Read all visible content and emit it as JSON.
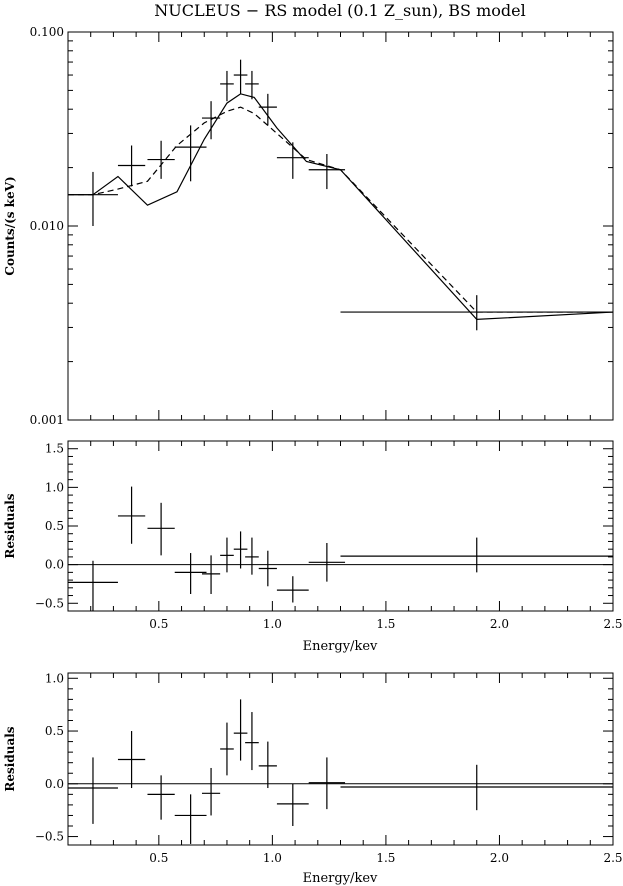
{
  "chart_data": [
    {
      "type": "line",
      "title": "NUCLEUS − RS model (0.1 Z_sun), BS model",
      "xlabel": "",
      "ylabel": "Counts/(s keV)",
      "xlim": [
        0.1,
        2.5
      ],
      "ylim": [
        0.001,
        0.1
      ],
      "yscale": "log",
      "ytick_labels": [
        "0.100",
        "0.010",
        "0.001"
      ],
      "ytick_values": [
        0.1,
        0.01,
        0.001
      ],
      "data_points": [
        {
          "x": 0.21,
          "xerr": 0.11,
          "y": 0.0145,
          "ylo": 0.01,
          "yhi": 0.019
        },
        {
          "x": 0.38,
          "xerr": 0.06,
          "y": 0.0205,
          "ylo": 0.016,
          "yhi": 0.026
        },
        {
          "x": 0.51,
          "xerr": 0.06,
          "y": 0.022,
          "ylo": 0.0175,
          "yhi": 0.0275
        },
        {
          "x": 0.64,
          "xerr": 0.07,
          "y": 0.0255,
          "ylo": 0.017,
          "yhi": 0.033
        },
        {
          "x": 0.73,
          "xerr": 0.04,
          "y": 0.036,
          "ylo": 0.028,
          "yhi": 0.044
        },
        {
          "x": 0.8,
          "xerr": 0.03,
          "y": 0.054,
          "ylo": 0.044,
          "yhi": 0.063
        },
        {
          "x": 0.86,
          "xerr": 0.03,
          "y": 0.06,
          "ylo": 0.048,
          "yhi": 0.072
        },
        {
          "x": 0.91,
          "xerr": 0.03,
          "y": 0.054,
          "ylo": 0.045,
          "yhi": 0.063
        },
        {
          "x": 0.98,
          "xerr": 0.04,
          "y": 0.041,
          "ylo": 0.033,
          "yhi": 0.048
        },
        {
          "x": 1.09,
          "xerr": 0.07,
          "y": 0.0225,
          "ylo": 0.0175,
          "yhi": 0.027
        },
        {
          "x": 1.24,
          "xerr": 0.08,
          "y": 0.0195,
          "ylo": 0.0155,
          "yhi": 0.0235
        },
        {
          "x": 1.9,
          "xerr": 0.6,
          "y": 0.0036,
          "ylo": 0.0029,
          "yhi": 0.0044
        }
      ],
      "series": [
        {
          "style": "solid",
          "x": [
            0.1,
            0.21,
            0.32,
            0.45,
            0.58,
            0.7,
            0.8,
            0.86,
            0.92,
            1.02,
            1.15,
            1.3,
            1.9,
            2.5
          ],
          "y": [
            0.0145,
            0.0145,
            0.018,
            0.0128,
            0.015,
            0.028,
            0.043,
            0.048,
            0.046,
            0.032,
            0.0215,
            0.0195,
            0.0033,
            0.0036
          ]
        },
        {
          "style": "dashed",
          "x": [
            0.1,
            0.21,
            0.32,
            0.45,
            0.58,
            0.7,
            0.8,
            0.86,
            0.92,
            1.02,
            1.15,
            1.3,
            1.9,
            2.5
          ],
          "y": [
            0.0145,
            0.0145,
            0.0155,
            0.017,
            0.026,
            0.034,
            0.039,
            0.041,
            0.038,
            0.03,
            0.022,
            0.0195,
            0.0036,
            0.0036
          ]
        }
      ]
    },
    {
      "type": "scatter",
      "xlabel": "Energy/kev",
      "ylabel": "Residuals",
      "xlim": [
        0.1,
        2.5
      ],
      "ylim": [
        -0.6,
        1.6
      ],
      "xtick_values": [
        0.5,
        1.0,
        1.5,
        2.0,
        2.5
      ],
      "xtick_labels": [
        "0.5",
        "1.0",
        "1.5",
        "2.0",
        "2.5"
      ],
      "ytick_values": [
        -0.5,
        0.0,
        0.5,
        1.0,
        1.5
      ],
      "ytick_labels": [
        "−0.5",
        "0.0",
        "0.5",
        "1.0",
        "1.5"
      ],
      "zero_line": 0,
      "data_points": [
        {
          "x": 0.21,
          "xerr": 0.11,
          "y": -0.23,
          "ylo": -0.6,
          "yhi": 0.05
        },
        {
          "x": 0.38,
          "xerr": 0.06,
          "y": 0.63,
          "ylo": 0.27,
          "yhi": 1.01
        },
        {
          "x": 0.51,
          "xerr": 0.06,
          "y": 0.47,
          "ylo": 0.12,
          "yhi": 0.8
        },
        {
          "x": 0.64,
          "xerr": 0.07,
          "y": -0.1,
          "ylo": -0.38,
          "yhi": 0.15
        },
        {
          "x": 0.73,
          "xerr": 0.04,
          "y": -0.12,
          "ylo": -0.38,
          "yhi": 0.12
        },
        {
          "x": 0.8,
          "xerr": 0.03,
          "y": 0.12,
          "ylo": -0.1,
          "yhi": 0.35
        },
        {
          "x": 0.86,
          "xerr": 0.03,
          "y": 0.2,
          "ylo": -0.05,
          "yhi": 0.43
        },
        {
          "x": 0.91,
          "xerr": 0.03,
          "y": 0.1,
          "ylo": -0.13,
          "yhi": 0.35
        },
        {
          "x": 0.98,
          "xerr": 0.04,
          "y": -0.05,
          "ylo": -0.28,
          "yhi": 0.18
        },
        {
          "x": 1.09,
          "xerr": 0.07,
          "y": -0.33,
          "ylo": -0.49,
          "yhi": -0.15
        },
        {
          "x": 1.24,
          "xerr": 0.08,
          "y": 0.03,
          "ylo": -0.22,
          "yhi": 0.28
        },
        {
          "x": 1.9,
          "xerr": 0.6,
          "y": 0.11,
          "ylo": -0.1,
          "yhi": 0.35
        }
      ]
    },
    {
      "type": "scatter",
      "xlabel": "Energy/kev",
      "ylabel": "Residuals",
      "xlim": [
        0.1,
        2.5
      ],
      "ylim": [
        -0.58,
        1.05
      ],
      "xtick_values": [
        0.5,
        1.0,
        1.5,
        2.0,
        2.5
      ],
      "xtick_labels": [
        "0.5",
        "1.0",
        "1.5",
        "2.0",
        "2.5"
      ],
      "ytick_values": [
        -0.5,
        0.0,
        0.5,
        1.0
      ],
      "ytick_labels": [
        "−0.5",
        "0.0",
        "0.5",
        "1.0"
      ],
      "zero_line": 0,
      "data_points": [
        {
          "x": 0.21,
          "xerr": 0.11,
          "y": -0.04,
          "ylo": -0.38,
          "yhi": 0.25
        },
        {
          "x": 0.38,
          "xerr": 0.06,
          "y": 0.23,
          "ylo": -0.04,
          "yhi": 0.5
        },
        {
          "x": 0.51,
          "xerr": 0.06,
          "y": -0.1,
          "ylo": -0.34,
          "yhi": 0.08
        },
        {
          "x": 0.64,
          "xerr": 0.07,
          "y": -0.3,
          "ylo": -0.57,
          "yhi": -0.1
        },
        {
          "x": 0.73,
          "xerr": 0.04,
          "y": -0.09,
          "ylo": -0.3,
          "yhi": 0.15
        },
        {
          "x": 0.8,
          "xerr": 0.03,
          "y": 0.33,
          "ylo": 0.08,
          "yhi": 0.58
        },
        {
          "x": 0.86,
          "xerr": 0.03,
          "y": 0.48,
          "ylo": 0.22,
          "yhi": 0.8
        },
        {
          "x": 0.91,
          "xerr": 0.03,
          "y": 0.39,
          "ylo": 0.13,
          "yhi": 0.68
        },
        {
          "x": 0.98,
          "xerr": 0.04,
          "y": 0.17,
          "ylo": -0.04,
          "yhi": 0.4
        },
        {
          "x": 1.09,
          "xerr": 0.07,
          "y": -0.19,
          "ylo": -0.4,
          "yhi": 0.0
        },
        {
          "x": 1.24,
          "xerr": 0.08,
          "y": 0.01,
          "ylo": -0.24,
          "yhi": 0.25
        },
        {
          "x": 1.9,
          "xerr": 0.6,
          "y": -0.03,
          "ylo": -0.25,
          "yhi": 0.18
        }
      ]
    }
  ]
}
